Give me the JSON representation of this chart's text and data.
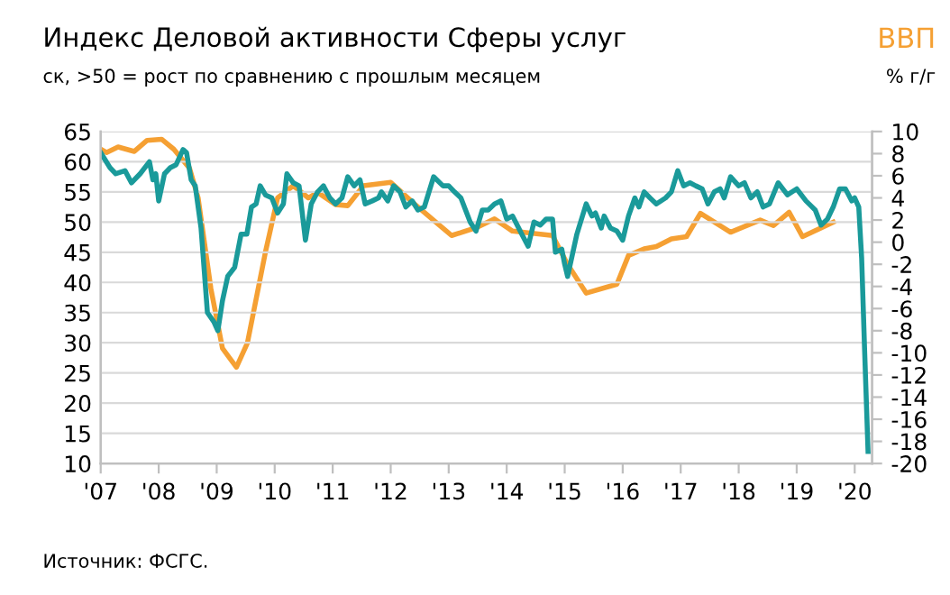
{
  "chart_data": {
    "type": "line",
    "title": "Индекс Деловой активности Сферы услуг",
    "subtitle": "ск, >50 = рост по сравнению с прошлым месяцем",
    "y2label": "% г/г",
    "annotations": [
      "Источник: ФСГС."
    ],
    "xlim": [
      2007,
      2020.3
    ],
    "xticks": [
      {
        "value": 2007,
        "label": "'07"
      },
      {
        "value": 2008,
        "label": "'08"
      },
      {
        "value": 2009,
        "label": "'09"
      },
      {
        "value": 2010,
        "label": "'10"
      },
      {
        "value": 2011,
        "label": "'11"
      },
      {
        "value": 2012,
        "label": "'12"
      },
      {
        "value": 2013,
        "label": "'13"
      },
      {
        "value": 2014,
        "label": "'14"
      },
      {
        "value": 2015,
        "label": "'15"
      },
      {
        "value": 2016,
        "label": "'16"
      },
      {
        "value": 2017,
        "label": "'17"
      },
      {
        "value": 2018,
        "label": "'18"
      },
      {
        "value": 2019,
        "label": "'19"
      },
      {
        "value": 2020,
        "label": "'20"
      }
    ],
    "ylim": [
      10,
      65
    ],
    "yticks": [
      10,
      15,
      20,
      25,
      30,
      35,
      40,
      45,
      50,
      55,
      60,
      65
    ],
    "y2lim": [
      -20,
      10
    ],
    "y2ticks": [
      {
        "value": -20,
        "label": "-20"
      },
      {
        "value": -18,
        "label": "-18"
      },
      {
        "value": -16,
        "label": "-16"
      },
      {
        "value": -14,
        "label": "-14"
      },
      {
        "value": -12,
        "label": "-12"
      },
      {
        "value": -10,
        "label": "-10"
      },
      {
        "value": -8,
        "label": "-8"
      },
      {
        "value": -6,
        "label": "-6"
      },
      {
        "value": -4,
        "label": "-4"
      },
      {
        "value": -2,
        "label": "-2"
      },
      0,
      2,
      4,
      6,
      8,
      10
    ],
    "grid": "y",
    "legend": false,
    "marker": "none",
    "line_style": "solid",
    "series": [
      {
        "color": "#1a9a9a",
        "x": [
          2007.0,
          2007.16,
          2007.26,
          2007.42,
          2007.53,
          2007.68,
          2007.84,
          2007.9,
          2007.95,
          2008.0,
          2008.1,
          2008.2,
          2008.3,
          2008.42,
          2008.48,
          2008.56,
          2008.63,
          2008.73,
          2008.84,
          2008.95,
          2009.02,
          2009.1,
          2009.19,
          2009.31,
          2009.42,
          2009.52,
          2009.6,
          2009.68,
          2009.75,
          2009.84,
          2009.95,
          2010.05,
          2010.15,
          2010.21,
          2010.32,
          2010.42,
          2010.53,
          2010.63,
          2010.74,
          2010.84,
          2010.95,
          2011.05,
          2011.16,
          2011.26,
          2011.37,
          2011.47,
          2011.56,
          2011.68,
          2011.79,
          2011.84,
          2011.95,
          2012.05,
          2012.16,
          2012.26,
          2012.37,
          2012.47,
          2012.58,
          2012.74,
          2012.9,
          2013.0,
          2013.1,
          2013.21,
          2013.37,
          2013.47,
          2013.58,
          2013.68,
          2013.79,
          2013.9,
          2014.0,
          2014.1,
          2014.26,
          2014.37,
          2014.47,
          2014.58,
          2014.68,
          2014.79,
          2014.84,
          2014.95,
          2015.0,
          2015.05,
          2015.21,
          2015.37,
          2015.47,
          2015.53,
          2015.63,
          2015.68,
          2015.79,
          2015.9,
          2016.0,
          2016.1,
          2016.21,
          2016.28,
          2016.37,
          2016.47,
          2016.58,
          2016.74,
          2016.84,
          2016.95,
          2017.05,
          2017.16,
          2017.26,
          2017.37,
          2017.47,
          2017.58,
          2017.68,
          2017.75,
          2017.86,
          2018.0,
          2018.1,
          2018.21,
          2018.32,
          2018.42,
          2018.53,
          2018.68,
          2018.84,
          2019.0,
          2019.16,
          2019.32,
          2019.42,
          2019.53,
          2019.63,
          2019.74,
          2019.84,
          2019.95,
          2020.0,
          2020.07,
          2020.12,
          2020.17,
          2020.23
        ],
        "values": [
          61.5,
          59,
          58,
          58.5,
          56.5,
          58,
          60,
          57,
          58,
          53.5,
          58,
          59,
          59.5,
          62,
          61.5,
          57,
          56,
          49,
          35,
          33.5,
          32,
          37,
          41,
          42.5,
          48,
          48,
          52.5,
          53,
          56,
          54.5,
          54,
          51.5,
          53,
          58,
          56.5,
          56,
          47,
          53,
          55,
          56,
          54,
          53,
          54,
          57.5,
          56,
          57,
          53,
          53.5,
          54,
          55,
          53.5,
          56,
          55,
          52.5,
          53.5,
          52,
          52.5,
          57.5,
          56,
          56,
          55,
          54,
          50,
          48.5,
          52,
          52,
          53,
          53.5,
          50.5,
          51,
          48,
          46,
          50,
          49.5,
          50.5,
          50.5,
          45,
          45.5,
          43,
          41,
          48,
          53,
          51,
          51.5,
          49,
          51,
          49,
          48.5,
          47,
          51,
          54,
          52.5,
          55,
          54,
          53,
          54,
          55,
          58.5,
          56,
          56.5,
          56,
          55.5,
          53,
          55,
          55.5,
          54,
          57.5,
          56,
          56.5,
          54,
          55,
          52.5,
          53,
          56.5,
          54.5,
          55.5,
          53.5,
          52,
          49.5,
          50.5,
          52.5,
          55.5,
          55.5,
          53.5,
          54,
          52.5,
          44,
          29,
          12
        ]
      },
      {
        "name": "ВВП",
        "color": "#f5a033",
        "axis": "y2",
        "x": [
          2007.0,
          2007.1,
          2007.3,
          2007.58,
          2007.8,
          2008.05,
          2008.26,
          2008.53,
          2008.68,
          2008.9,
          2009.1,
          2009.34,
          2009.53,
          2009.84,
          2010.05,
          2010.32,
          2010.58,
          2010.74,
          2011.05,
          2011.26,
          2011.53,
          2012.0,
          2012.42,
          2013.05,
          2013.47,
          2013.79,
          2014.1,
          2014.79,
          2015.05,
          2015.37,
          2015.9,
          2016.1,
          2016.37,
          2016.58,
          2016.84,
          2017.1,
          2017.34,
          2017.86,
          2018.37,
          2018.6,
          2018.87,
          2019.1,
          2019.63
        ],
        "values": [
          8.4,
          8.1,
          8.6,
          8.2,
          9.2,
          9.3,
          8.4,
          6.7,
          4.0,
          -4.2,
          -9.6,
          -11.3,
          -9.1,
          -0.9,
          4.0,
          5.1,
          4.0,
          4.5,
          3.4,
          3.3,
          5.1,
          5.4,
          3.4,
          0.6,
          1.3,
          2.1,
          1.0,
          0.6,
          -2.0,
          -4.6,
          -3.8,
          -1.2,
          -0.6,
          -0.4,
          0.3,
          0.5,
          2.6,
          0.9,
          2.0,
          1.5,
          2.7,
          0.5,
          1.8
        ]
      }
    ]
  }
}
